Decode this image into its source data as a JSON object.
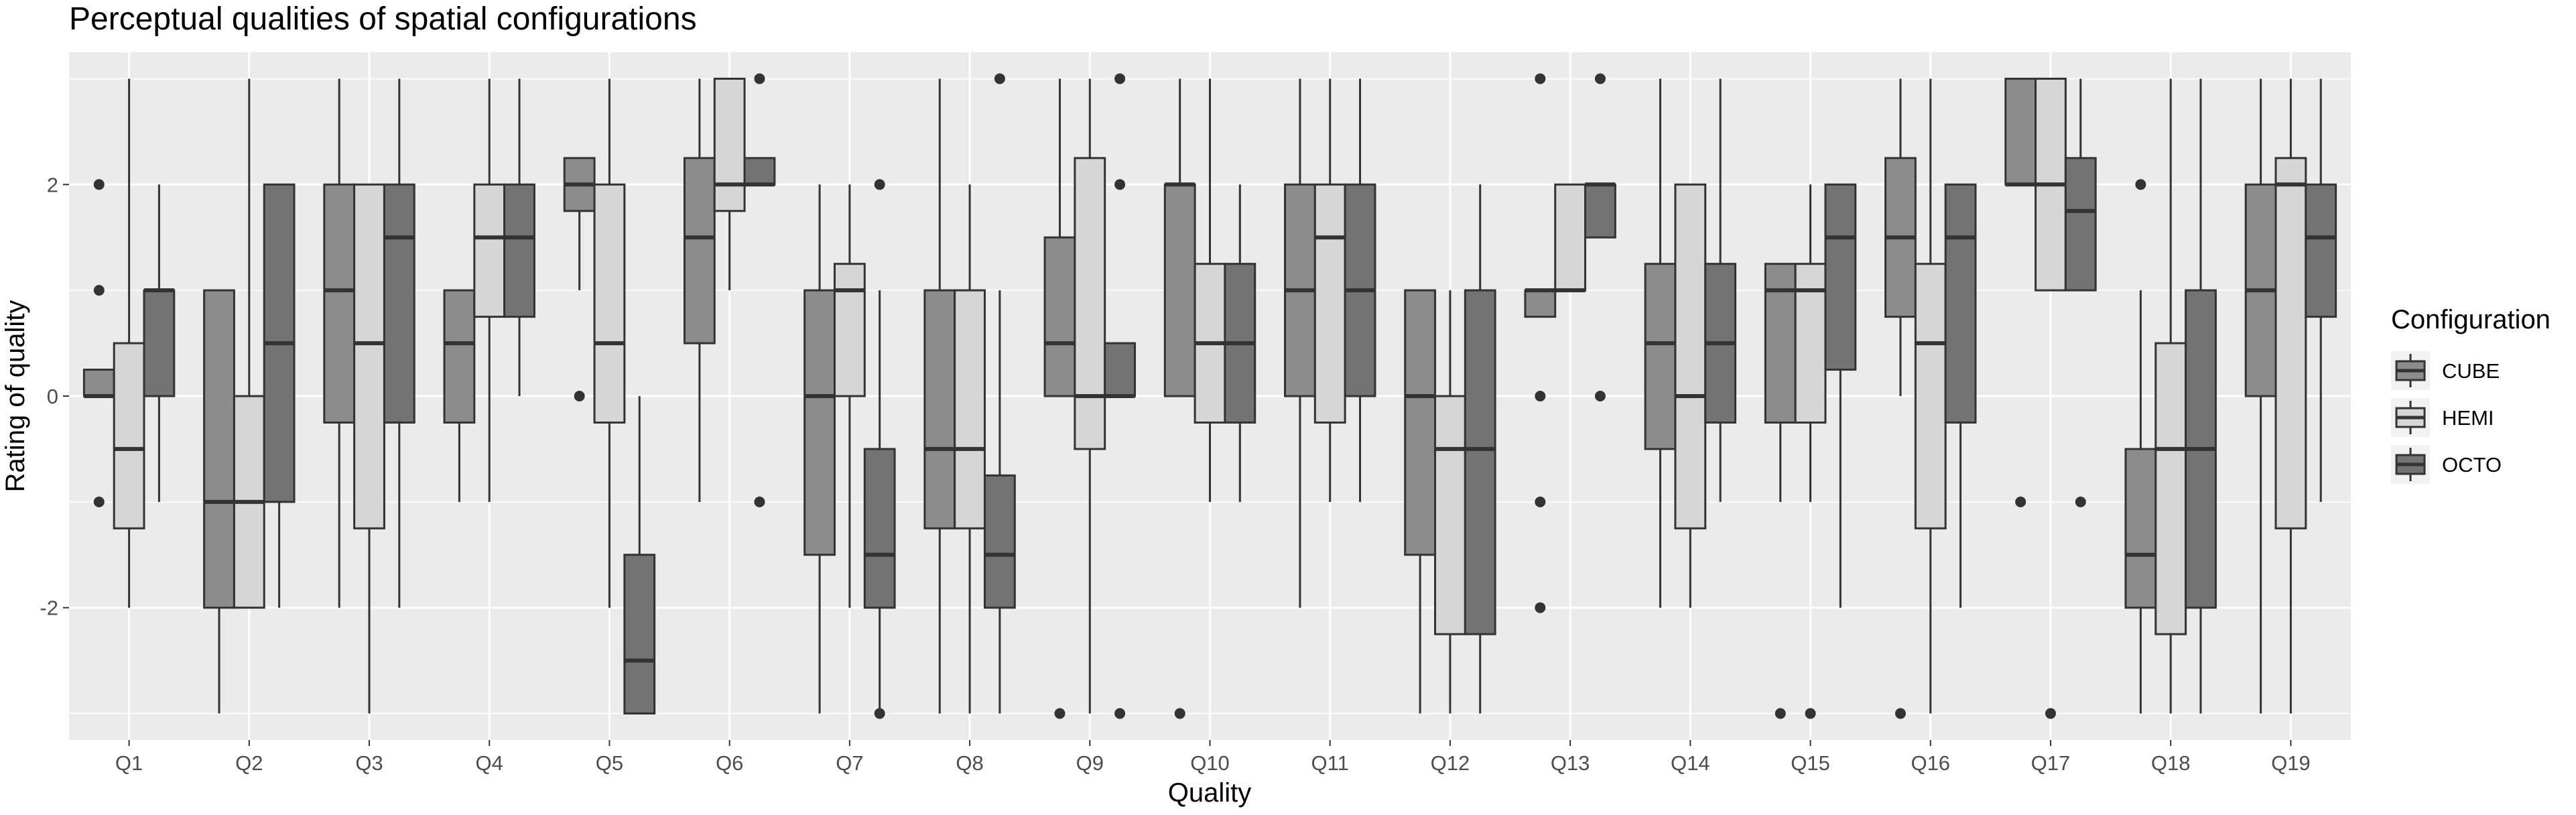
{
  "chart_data": {
    "type": "boxplot",
    "title": "Perceptual qualities of spatial configurations",
    "xlabel": "Quality",
    "ylabel": "Rating of quality",
    "ylim": [
      -3.25,
      3.25
    ],
    "yticks": [
      -2,
      0,
      2
    ],
    "ytick_labels": [
      "-2",
      "0",
      "2"
    ],
    "grid": true,
    "categories": [
      "Q1",
      "Q2",
      "Q3",
      "Q4",
      "Q5",
      "Q6",
      "Q7",
      "Q8",
      "Q9",
      "Q10",
      "Q11",
      "Q12",
      "Q13",
      "Q14",
      "Q15",
      "Q16",
      "Q17",
      "Q18",
      "Q19"
    ],
    "legend": {
      "title": "Configuration",
      "position": "right"
    },
    "series": [
      {
        "name": "CUBE",
        "color": "#8c8c8c",
        "boxes": [
          {
            "lw": 0,
            "q1": 0,
            "med": 0,
            "q3": 0.25,
            "uw": 0.25,
            "out": [
              2,
              1,
              -1
            ]
          },
          {
            "lw": -3,
            "q1": -2,
            "med": -1,
            "q3": 1,
            "uw": 1,
            "out": []
          },
          {
            "lw": -2,
            "q1": -0.25,
            "med": 1,
            "q3": 2,
            "uw": 3,
            "out": []
          },
          {
            "lw": -1,
            "q1": -0.25,
            "med": 0.5,
            "q3": 1,
            "uw": 1,
            "out": []
          },
          {
            "lw": 1,
            "q1": 1.75,
            "med": 2,
            "q3": 2.25,
            "uw": 2.25,
            "out": [
              0
            ]
          },
          {
            "lw": -1,
            "q1": 0.5,
            "med": 1.5,
            "q3": 2.25,
            "uw": 3,
            "out": []
          },
          {
            "lw": -3,
            "q1": -1.5,
            "med": 0,
            "q3": 1,
            "uw": 2,
            "out": []
          },
          {
            "lw": -3,
            "q1": -1.25,
            "med": -0.5,
            "q3": 1,
            "uw": 3,
            "out": []
          },
          {
            "lw": 0,
            "q1": 0,
            "med": 0.5,
            "q3": 1.5,
            "uw": 3,
            "out": [
              -3
            ]
          },
          {
            "lw": 0,
            "q1": 0,
            "med": 2,
            "q3": 2,
            "uw": 3,
            "out": [
              -3
            ]
          },
          {
            "lw": -2,
            "q1": 0,
            "med": 1,
            "q3": 2,
            "uw": 3,
            "out": []
          },
          {
            "lw": -3,
            "q1": -1.5,
            "med": 0,
            "q3": 1,
            "uw": 1,
            "out": []
          },
          {
            "lw": 0.75,
            "q1": 0.75,
            "med": 1,
            "q3": 1,
            "uw": 1,
            "out": [
              3,
              0,
              -1,
              -2
            ]
          },
          {
            "lw": -2,
            "q1": -0.5,
            "med": 0.5,
            "q3": 1.25,
            "uw": 3,
            "out": []
          },
          {
            "lw": -1,
            "q1": -0.25,
            "med": 1,
            "q3": 1.25,
            "uw": 1.25,
            "out": [
              -3
            ]
          },
          {
            "lw": 0,
            "q1": 0.75,
            "med": 1.5,
            "q3": 2.25,
            "uw": 3,
            "out": [
              -3
            ]
          },
          {
            "lw": 2,
            "q1": 2,
            "med": 2,
            "q3": 3,
            "uw": 3,
            "out": [
              -1
            ]
          },
          {
            "lw": -3,
            "q1": -2,
            "med": -1.5,
            "q3": -0.5,
            "uw": 1,
            "out": [
              2
            ]
          },
          {
            "lw": -3,
            "q1": 0,
            "med": 1,
            "q3": 2,
            "uw": 3,
            "out": []
          }
        ]
      },
      {
        "name": "HEMI",
        "color": "#d6d6d6",
        "boxes": [
          {
            "lw": -2,
            "q1": -1.25,
            "med": -0.5,
            "q3": 0.5,
            "uw": 3,
            "out": []
          },
          {
            "lw": -2,
            "q1": -2,
            "med": -1,
            "q3": 0,
            "uw": 3,
            "out": []
          },
          {
            "lw": -3,
            "q1": -1.25,
            "med": 0.5,
            "q3": 2,
            "uw": 2,
            "out": []
          },
          {
            "lw": -1,
            "q1": 0.75,
            "med": 1.5,
            "q3": 2,
            "uw": 3,
            "out": []
          },
          {
            "lw": -2,
            "q1": -0.25,
            "med": 0.5,
            "q3": 2,
            "uw": 3,
            "out": []
          },
          {
            "lw": 1,
            "q1": 1.75,
            "med": 2,
            "q3": 3,
            "uw": 3,
            "out": []
          },
          {
            "lw": -2,
            "q1": 0,
            "med": 1,
            "q3": 1.25,
            "uw": 2,
            "out": []
          },
          {
            "lw": -3,
            "q1": -1.25,
            "med": -0.5,
            "q3": 1,
            "uw": 2,
            "out": []
          },
          {
            "lw": -3,
            "q1": -0.5,
            "med": 0,
            "q3": 2.25,
            "uw": 3,
            "out": []
          },
          {
            "lw": -1,
            "q1": -0.25,
            "med": 0.5,
            "q3": 1.25,
            "uw": 3,
            "out": []
          },
          {
            "lw": -1,
            "q1": -0.25,
            "med": 1.5,
            "q3": 2,
            "uw": 3,
            "out": []
          },
          {
            "lw": -3,
            "q1": -2.25,
            "med": -0.5,
            "q3": 0,
            "uw": 1,
            "out": []
          },
          {
            "lw": 1,
            "q1": 1,
            "med": 1,
            "q3": 2,
            "uw": 2,
            "out": []
          },
          {
            "lw": -2,
            "q1": -1.25,
            "med": 0,
            "q3": 2,
            "uw": 2,
            "out": []
          },
          {
            "lw": -1,
            "q1": -0.25,
            "med": 1,
            "q3": 1.25,
            "uw": 2,
            "out": [
              -3
            ]
          },
          {
            "lw": -3,
            "q1": -1.25,
            "med": 0.5,
            "q3": 1.25,
            "uw": 3,
            "out": []
          },
          {
            "lw": 1,
            "q1": 1,
            "med": 2,
            "q3": 3,
            "uw": 3,
            "out": [
              -3
            ]
          },
          {
            "lw": -3,
            "q1": -2.25,
            "med": -0.5,
            "q3": 0.5,
            "uw": 3,
            "out": []
          },
          {
            "lw": -3,
            "q1": -1.25,
            "med": 2,
            "q3": 2.25,
            "uw": 3,
            "out": []
          }
        ]
      },
      {
        "name": "OCTO",
        "color": "#737373",
        "boxes": [
          {
            "lw": -1,
            "q1": 0,
            "med": 1,
            "q3": 1,
            "uw": 2,
            "out": []
          },
          {
            "lw": -2,
            "q1": -1,
            "med": 0.5,
            "q3": 2,
            "uw": 2,
            "out": []
          },
          {
            "lw": -2,
            "q1": -0.25,
            "med": 1.5,
            "q3": 2,
            "uw": 3,
            "out": []
          },
          {
            "lw": 0,
            "q1": 0.75,
            "med": 1.5,
            "q3": 2,
            "uw": 3,
            "out": []
          },
          {
            "lw": -3,
            "q1": -3,
            "med": -2.5,
            "q3": -1.5,
            "uw": 0,
            "out": []
          },
          {
            "lw": 2,
            "q1": 2,
            "med": 2,
            "q3": 2.25,
            "uw": 2.25,
            "out": [
              3,
              -1
            ]
          },
          {
            "lw": -3,
            "q1": -2,
            "med": -1.5,
            "q3": -0.5,
            "uw": 1,
            "out": [
              2,
              -3
            ]
          },
          {
            "lw": -3,
            "q1": -2,
            "med": -1.5,
            "q3": -0.75,
            "uw": 1,
            "out": [
              3
            ]
          },
          {
            "lw": 0,
            "q1": 0,
            "med": 0,
            "q3": 0.5,
            "uw": 0.5,
            "out": [
              3,
              2,
              -3
            ]
          },
          {
            "lw": -1,
            "q1": -0.25,
            "med": 0.5,
            "q3": 1.25,
            "uw": 2,
            "out": []
          },
          {
            "lw": -1,
            "q1": 0,
            "med": 1,
            "q3": 2,
            "uw": 3,
            "out": []
          },
          {
            "lw": -3,
            "q1": -2.25,
            "med": -0.5,
            "q3": 1,
            "uw": 2,
            "out": []
          },
          {
            "lw": 1.5,
            "q1": 1.5,
            "med": 2,
            "q3": 2,
            "uw": 2,
            "out": [
              3,
              0
            ]
          },
          {
            "lw": -1,
            "q1": -0.25,
            "med": 0.5,
            "q3": 1.25,
            "uw": 3,
            "out": []
          },
          {
            "lw": -2,
            "q1": 0.25,
            "med": 1.5,
            "q3": 2,
            "uw": 2,
            "out": []
          },
          {
            "lw": -2,
            "q1": -0.25,
            "med": 1.5,
            "q3": 2,
            "uw": 2,
            "out": []
          },
          {
            "lw": 1,
            "q1": 1,
            "med": 1.75,
            "q3": 2.25,
            "uw": 3,
            "out": [
              -1
            ]
          },
          {
            "lw": -3,
            "q1": -2,
            "med": -0.5,
            "q3": 1,
            "uw": 3,
            "out": []
          },
          {
            "lw": -1,
            "q1": 0.75,
            "med": 1.5,
            "q3": 2,
            "uw": 3,
            "out": []
          }
        ]
      }
    ]
  }
}
